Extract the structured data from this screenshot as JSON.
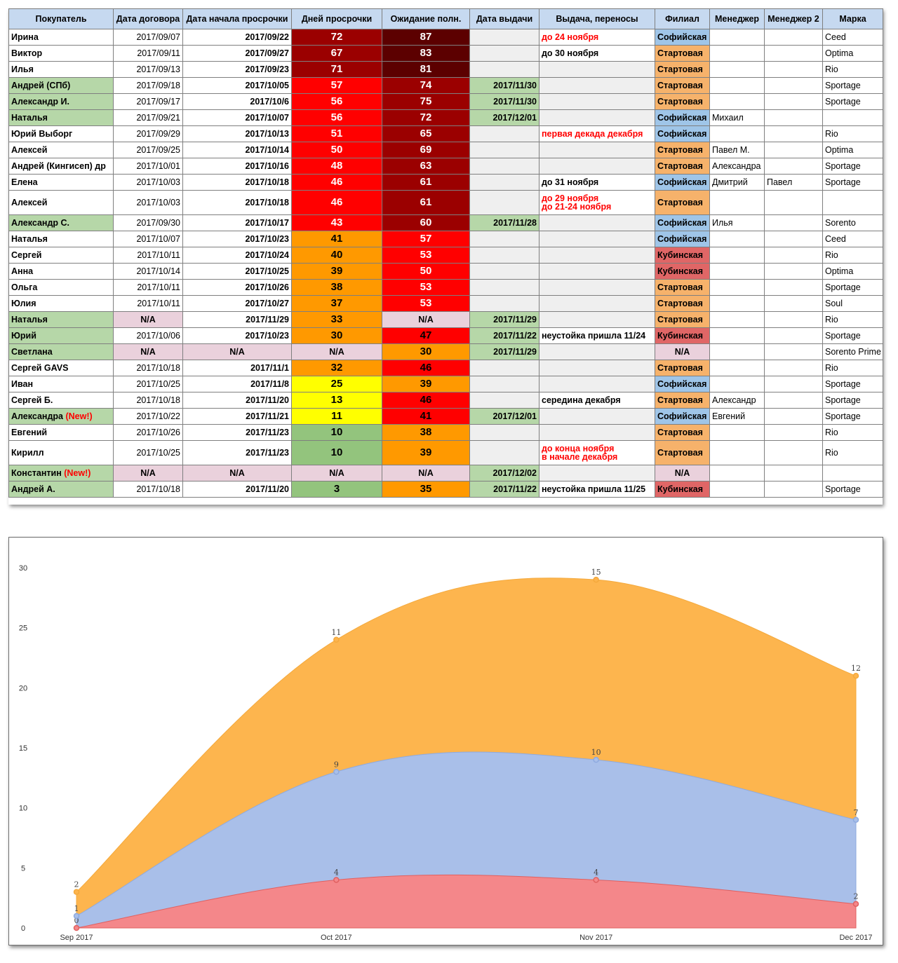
{
  "table": {
    "headers": [
      "Покупатель",
      "Дата договора",
      "Дата начала просрочки",
      "Дней просрочки",
      "Ожидание полн.",
      "Дата выдачи",
      "Выдача, переносы",
      "Филиал",
      "Менеджер",
      "Менеджер 2",
      "Марка"
    ],
    "rows": [
      {
        "name": "Ирина",
        "new": "",
        "contract": "2017/09/07",
        "start": "2017/09/22",
        "overdue": "72",
        "wait": "87",
        "issue": "",
        "note": "до 24 ноября",
        "note_red": true,
        "branch": "Софийская",
        "mgr": "",
        "mgr2": "",
        "brand": "Ceed",
        "green": false,
        "ov": "#9b0000",
        "wt": "#5c0000",
        "tall": false
      },
      {
        "name": "Виктор",
        "new": "",
        "contract": "2017/09/11",
        "start": "2017/09/27",
        "overdue": "67",
        "wait": "83",
        "issue": "",
        "note": "до 30 ноября",
        "note_red": false,
        "branch": "Стартовая",
        "mgr": "",
        "mgr2": "",
        "brand": "Optima",
        "green": false,
        "ov": "#9b0000",
        "wt": "#5c0000",
        "tall": false
      },
      {
        "name": "Илья",
        "new": "",
        "contract": "2017/09/13",
        "start": "2017/09/23",
        "overdue": "71",
        "wait": "81",
        "issue": "",
        "note": "",
        "note_red": false,
        "branch": "Стартовая",
        "mgr": "",
        "mgr2": "",
        "brand": "Rio",
        "green": false,
        "ov": "#9b0000",
        "wt": "#5c0000",
        "tall": false
      },
      {
        "name": "Андрей (СПб)",
        "new": "",
        "contract": "2017/09/18",
        "start": "2017/10/05",
        "overdue": "57",
        "wait": "74",
        "issue": "2017/11/30",
        "note": "",
        "note_red": false,
        "branch": "Стартовая",
        "mgr": "",
        "mgr2": "",
        "brand": "Sportage",
        "green": true,
        "ov": "#ff0000",
        "wt": "#9b0000",
        "tall": false
      },
      {
        "name": "Александр И.",
        "new": "",
        "contract": "2017/09/17",
        "start": "2017/10/6",
        "overdue": "56",
        "wait": "75",
        "issue": "2017/11/30",
        "note": "",
        "note_red": false,
        "branch": "Стартовая",
        "mgr": "",
        "mgr2": "",
        "brand": "Sportage",
        "green": true,
        "ov": "#ff0000",
        "wt": "#9b0000",
        "tall": false
      },
      {
        "name": "Наталья",
        "new": "",
        "contract": "2017/09/21",
        "start": "2017/10/07",
        "overdue": "56",
        "wait": "72",
        "issue": "2017/12/01",
        "note": "",
        "note_red": false,
        "branch": "Софийская",
        "mgr": "Михаил",
        "mgr2": "",
        "brand": "",
        "green": true,
        "ov": "#ff0000",
        "wt": "#9b0000",
        "tall": false
      },
      {
        "name": "Юрий Выборг",
        "new": "",
        "contract": "2017/09/29",
        "start": "2017/10/13",
        "overdue": "51",
        "wait": "65",
        "issue": "",
        "note": "первая декада декабря",
        "note_red": true,
        "branch": "Софийская",
        "mgr": "",
        "mgr2": "",
        "brand": "Rio",
        "green": false,
        "ov": "#ff0000",
        "wt": "#9b0000",
        "tall": false
      },
      {
        "name": "Алексей",
        "new": "",
        "contract": "2017/09/25",
        "start": "2017/10/14",
        "overdue": "50",
        "wait": "69",
        "issue": "",
        "note": "",
        "note_red": false,
        "branch": "Стартовая",
        "mgr": "Павел М.",
        "mgr2": "",
        "brand": "Optima",
        "green": false,
        "ov": "#ff0000",
        "wt": "#9b0000",
        "tall": false
      },
      {
        "name": "Андрей (Кингисеп) др",
        "new": "",
        "contract": "2017/10/01",
        "start": "2017/10/16",
        "overdue": "48",
        "wait": "63",
        "issue": "",
        "note": "",
        "note_red": false,
        "branch": "Стартовая",
        "mgr": "Александра",
        "mgr2": "",
        "brand": "Sportage",
        "green": false,
        "ov": "#ff0000",
        "wt": "#9b0000",
        "tall": false
      },
      {
        "name": "Елена",
        "new": "",
        "contract": "2017/10/03",
        "start": "2017/10/18",
        "overdue": "46",
        "wait": "61",
        "issue": "",
        "note": "до 31 ноября",
        "note_red": false,
        "branch": "Софийская",
        "mgr": "Дмитрий",
        "mgr2": "Павел",
        "brand": "Sportage",
        "green": false,
        "ov": "#ff0000",
        "wt": "#9b0000",
        "tall": false
      },
      {
        "name": "Алексей",
        "new": "",
        "contract": "2017/10/03",
        "start": "2017/10/18",
        "overdue": "46",
        "wait": "61",
        "issue": "",
        "note": "до 29 ноября",
        "note2": "до 21-24 ноября",
        "note_red": true,
        "branch": "Стартовая",
        "mgr": "",
        "mgr2": "",
        "brand": "",
        "green": false,
        "ov": "#ff0000",
        "wt": "#9b0000",
        "tall": true
      },
      {
        "name": "Александр С.",
        "new": "",
        "contract": "2017/09/30",
        "start": "2017/10/17",
        "overdue": "43",
        "wait": "60",
        "issue": "2017/11/28",
        "note": "",
        "note_red": false,
        "branch": "Софийская",
        "mgr": "Илья",
        "mgr2": "",
        "brand": "Sorento",
        "green": true,
        "ov": "#ff0000",
        "wt": "#9b0000",
        "tall": false
      },
      {
        "name": "Наталья",
        "new": "",
        "contract": "2017/10/07",
        "start": "2017/10/23",
        "overdue": "41",
        "wait": "57",
        "issue": "",
        "note": "",
        "note_red": false,
        "branch": "Софийская",
        "mgr": "",
        "mgr2": "",
        "brand": "Ceed",
        "green": false,
        "ov": "#ff9900",
        "wt": "#ff0000",
        "tall": false
      },
      {
        "name": "Сергей",
        "new": "",
        "contract": "2017/10/11",
        "start": "2017/10/24",
        "overdue": "40",
        "wait": "53",
        "issue": "",
        "note": "",
        "note_red": false,
        "branch": "Кубинская",
        "mgr": "",
        "mgr2": "",
        "brand": "Rio",
        "green": false,
        "ov": "#ff9900",
        "wt": "#ff0000",
        "tall": false
      },
      {
        "name": "Анна",
        "new": "",
        "contract": "2017/10/14",
        "start": "2017/10/25",
        "overdue": "39",
        "wait": "50",
        "issue": "",
        "note": "",
        "note_red": false,
        "branch": "Кубинская",
        "mgr": "",
        "mgr2": "",
        "brand": "Optima",
        "green": false,
        "ov": "#ff9900",
        "wt": "#ff0000",
        "tall": false
      },
      {
        "name": "Ольга",
        "new": "",
        "contract": "2017/10/11",
        "start": "2017/10/26",
        "overdue": "38",
        "wait": "53",
        "issue": "",
        "note": "",
        "note_red": false,
        "branch": "Стартовая",
        "mgr": "",
        "mgr2": "",
        "brand": "Sportage",
        "green": false,
        "ov": "#ff9900",
        "wt": "#ff0000",
        "tall": false
      },
      {
        "name": "Юлия",
        "new": "",
        "contract": "2017/10/11",
        "start": "2017/10/27",
        "overdue": "37",
        "wait": "53",
        "issue": "",
        "note": "",
        "note_red": false,
        "branch": "Стартовая",
        "mgr": "",
        "mgr2": "",
        "brand": "Soul",
        "green": false,
        "ov": "#ff9900",
        "wt": "#ff0000",
        "tall": false
      },
      {
        "name": "Наталья",
        "new": "",
        "contract": "N/A",
        "start": "2017/11/29",
        "overdue": "33",
        "wait": "N/A",
        "issue": "2017/11/29",
        "note": "",
        "note_red": false,
        "branch": "Стартовая",
        "mgr": "",
        "mgr2": "",
        "brand": "Rio",
        "green": true,
        "ov": "#ff9900",
        "wt": "#ead1dc",
        "tall": false
      },
      {
        "name": "Юрий",
        "new": "",
        "contract": "2017/10/06",
        "start": "2017/10/23",
        "overdue": "30",
        "wait": "47",
        "issue": "2017/11/22",
        "note": "неустойка пришла 11/24",
        "note_red": false,
        "branch": "Кубинская",
        "mgr": "",
        "mgr2": "",
        "brand": "Sportage",
        "green": true,
        "ov": "#ff9900",
        "wt": "#ff0000",
        "tall": false
      },
      {
        "name": "Светлана",
        "new": "",
        "contract": "N/A",
        "start": "N/A",
        "overdue": "N/A",
        "wait": "30",
        "issue": "2017/11/29",
        "note": "",
        "note_red": false,
        "branch": "N/A",
        "mgr": "",
        "mgr2": "",
        "brand": "Sorento Prime",
        "green": true,
        "ov": "#ead1dc",
        "wt": "#ff9900",
        "tall": false
      },
      {
        "name": "Сергей GAVS",
        "new": "",
        "contract": "2017/10/18",
        "start": "2017/11/1",
        "overdue": "32",
        "wait": "46",
        "issue": "",
        "note": "",
        "note_red": false,
        "branch": "Стартовая",
        "mgr": "",
        "mgr2": "",
        "brand": "Rio",
        "green": false,
        "ov": "#ff9900",
        "wt": "#ff0000",
        "tall": false
      },
      {
        "name": "Иван",
        "new": "",
        "contract": "2017/10/25",
        "start": "2017/11/8",
        "overdue": "25",
        "wait": "39",
        "issue": "",
        "note": "",
        "note_red": false,
        "branch": "Софийская",
        "mgr": "",
        "mgr2": "",
        "brand": "Sportage",
        "green": false,
        "ov": "#ffff00",
        "wt": "#ff9900",
        "tall": false
      },
      {
        "name": "Сергей Б.",
        "new": "",
        "contract": "2017/10/18",
        "start": "2017/11/20",
        "overdue": "13",
        "wait": "46",
        "issue": "",
        "note": "середина декабря",
        "note_red": false,
        "branch": "Стартовая",
        "mgr": "Александр",
        "mgr2": "",
        "brand": "Sportage",
        "green": false,
        "ov": "#ffff00",
        "wt": "#ff0000",
        "tall": false
      },
      {
        "name": "Александра",
        "new": "(New!)",
        "contract": "2017/10/22",
        "start": "2017/11/21",
        "overdue": "11",
        "wait": "41",
        "issue": "2017/12/01",
        "note": "",
        "note_red": false,
        "branch": "Софийская",
        "mgr": "Евгений",
        "mgr2": "",
        "brand": "Sportage",
        "green": true,
        "ov": "#ffff00",
        "wt": "#ff0000",
        "tall": false
      },
      {
        "name": "Евгений",
        "new": "",
        "contract": "2017/10/26",
        "start": "2017/11/23",
        "overdue": "10",
        "wait": "38",
        "issue": "",
        "note": "",
        "note_red": false,
        "branch": "Стартовая",
        "mgr": "",
        "mgr2": "",
        "brand": "Rio",
        "green": false,
        "ov": "#93c47d",
        "wt": "#ff9900",
        "tall": false
      },
      {
        "name": "Кирилл",
        "new": "",
        "contract": "2017/10/25",
        "start": "2017/11/23",
        "overdue": "10",
        "wait": "39",
        "issue": "",
        "note": "до конца ноября",
        "note2": "в начале декабря",
        "note_red": true,
        "branch": "Стартовая",
        "mgr": "",
        "mgr2": "",
        "brand": "Rio",
        "green": false,
        "ov": "#93c47d",
        "wt": "#ff9900",
        "tall": true
      },
      {
        "name": "Константин",
        "new": "(New!)",
        "contract": "N/A",
        "start": "N/A",
        "overdue": "N/A",
        "wait": "N/A",
        "issue": "2017/12/02",
        "note": "",
        "note_red": false,
        "branch": "N/A",
        "mgr": "",
        "mgr2": "",
        "brand": "",
        "green": true,
        "ov": "#ead1dc",
        "wt": "#ead1dc",
        "tall": false
      },
      {
        "name": "Андрей А.",
        "new": "",
        "contract": "2017/10/18",
        "start": "2017/11/20",
        "overdue": "3",
        "wait": "35",
        "issue": "2017/11/22",
        "note": "неустойка пришла 11/25",
        "note_red": false,
        "branch": "Кубинская",
        "mgr": "",
        "mgr2": "",
        "brand": "Sportage",
        "green": true,
        "ov": "#93c47d",
        "wt": "#ff9900",
        "tall": false
      }
    ]
  },
  "colors": {
    "header_bg": "#c6d9f0",
    "green_bg": "#b6d7a8",
    "na_bg": "#ead1dc",
    "issue_empty_bg": "#efefef",
    "branch": {
      "Софийская": "#9fc5e8",
      "Стартовая": "#f6b26b",
      "Кубинская": "#e06666",
      "N/A": "#ead1dc"
    },
    "note_red": "#ff0000",
    "new_red": "#ff0000"
  },
  "chart_data": {
    "type": "area",
    "stacked": true,
    "categories": [
      "Sep 2017",
      "Oct 2017",
      "Nov 2017",
      "Dec 2017"
    ],
    "ylim": [
      0,
      30
    ],
    "yticks": [
      "0",
      "5",
      "10",
      "15",
      "20",
      "25",
      "30"
    ],
    "grid": false,
    "series": [
      {
        "values": [
          0,
          4,
          4,
          2
        ],
        "color": "#f4878a",
        "point": "#e06060"
      },
      {
        "values": [
          1,
          9,
          10,
          7
        ],
        "color": "#a9bfe9",
        "point": "#8eaadf"
      },
      {
        "values": [
          2,
          11,
          15,
          12
        ],
        "color": "#fdb54e",
        "point": "#f4a93c"
      }
    ]
  }
}
